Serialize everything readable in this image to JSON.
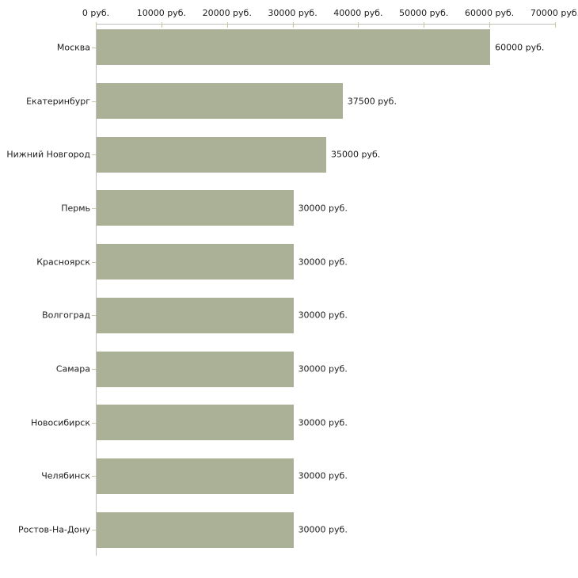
{
  "chart_data": {
    "type": "bar",
    "orientation": "horizontal",
    "title": "",
    "unit": "руб.",
    "categories": [
      "Москва",
      "Екатеринбург",
      "Нижний Новгород",
      "Пермь",
      "Красноярск",
      "Волгоград",
      "Самара",
      "Новосибирск",
      "Челябинск",
      "Ростов-На-Дону"
    ],
    "values": [
      60000,
      37500,
      35000,
      30000,
      30000,
      30000,
      30000,
      30000,
      30000,
      30000
    ],
    "value_labels": [
      "60000 руб.",
      "37500 руб.",
      "35000 руб.",
      "30000 руб.",
      "30000 руб.",
      "30000 руб.",
      "30000 руб.",
      "30000 руб.",
      "30000 руб.",
      "30000 руб."
    ],
    "x_axis": {
      "position": "top",
      "min": 0,
      "max": 70000,
      "tick_step": 10000,
      "tick_labels": [
        "0 руб.",
        "10000 руб.",
        "20000 руб.",
        "30000 руб.",
        "40000 руб.",
        "50000 руб.",
        "60000 руб.",
        "70000 руб."
      ]
    },
    "grid": false,
    "legend": "none",
    "colors": {
      "bar": "#abb197",
      "axis": "#c0c0c0",
      "tick": "#c8c69d",
      "text": "#1c1c1c",
      "background": "#ffffff"
    }
  }
}
